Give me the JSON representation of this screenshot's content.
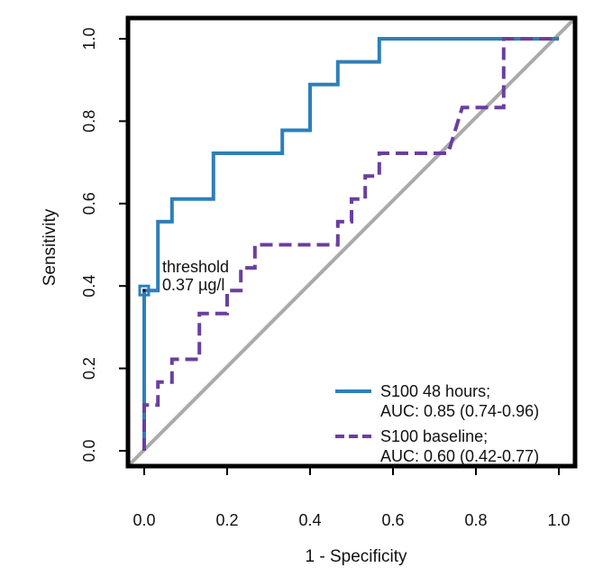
{
  "chart_data": {
    "type": "line",
    "title": "",
    "xlabel": "1 - Specificity",
    "ylabel": "Sensitivity",
    "xlim": [
      0.0,
      1.0
    ],
    "ylim": [
      0.0,
      1.0
    ],
    "x_ticks": [
      "0.0",
      "0.2",
      "0.4",
      "0.6",
      "0.8",
      "1.0"
    ],
    "y_ticks": [
      "0.0",
      "0.2",
      "0.4",
      "0.6",
      "0.8",
      "1.0"
    ],
    "grid": false,
    "legend_position": "bottom-right",
    "series": [
      {
        "name": "S100 48 hours;",
        "auc_label": "AUC: 0.85 (0.74-0.96)",
        "color": "#2E7FB8",
        "style": "solid",
        "x": [
          0.0,
          0.0,
          0.0,
          0.033,
          0.033,
          0.067,
          0.067,
          0.167,
          0.167,
          0.333,
          0.333,
          0.4,
          0.4,
          0.467,
          0.467,
          0.567,
          0.567,
          0.867,
          1.0
        ],
        "y": [
          0.0,
          0.389,
          0.389,
          0.389,
          0.556,
          0.556,
          0.611,
          0.611,
          0.722,
          0.722,
          0.778,
          0.778,
          0.889,
          0.889,
          0.944,
          0.944,
          1.0,
          1.0,
          1.0
        ]
      },
      {
        "name": "S100 baseline;",
        "auc_label": "AUC: 0.60 (0.42-0.77)",
        "color": "#6A3FA0",
        "style": "dashed",
        "x": [
          0.0,
          0.0,
          0.033,
          0.033,
          0.067,
          0.067,
          0.133,
          0.133,
          0.2,
          0.2,
          0.233,
          0.233,
          0.267,
          0.267,
          0.467,
          0.467,
          0.5,
          0.5,
          0.533,
          0.533,
          0.567,
          0.567,
          0.733,
          0.767,
          0.867,
          0.867,
          1.0
        ],
        "y": [
          0.0,
          0.111,
          0.111,
          0.167,
          0.167,
          0.222,
          0.222,
          0.333,
          0.333,
          0.389,
          0.389,
          0.444,
          0.444,
          0.5,
          0.5,
          0.556,
          0.556,
          0.611,
          0.611,
          0.667,
          0.667,
          0.722,
          0.722,
          0.833,
          0.833,
          1.0,
          1.0
        ]
      }
    ],
    "reference_line": {
      "x": [
        0,
        1
      ],
      "y": [
        0,
        1
      ],
      "color": "#AAAAAA"
    },
    "annotation": {
      "line1": "threshold",
      "line2": "0.37 µg/l",
      "point": {
        "x": 0.0,
        "y": 0.389
      }
    }
  }
}
